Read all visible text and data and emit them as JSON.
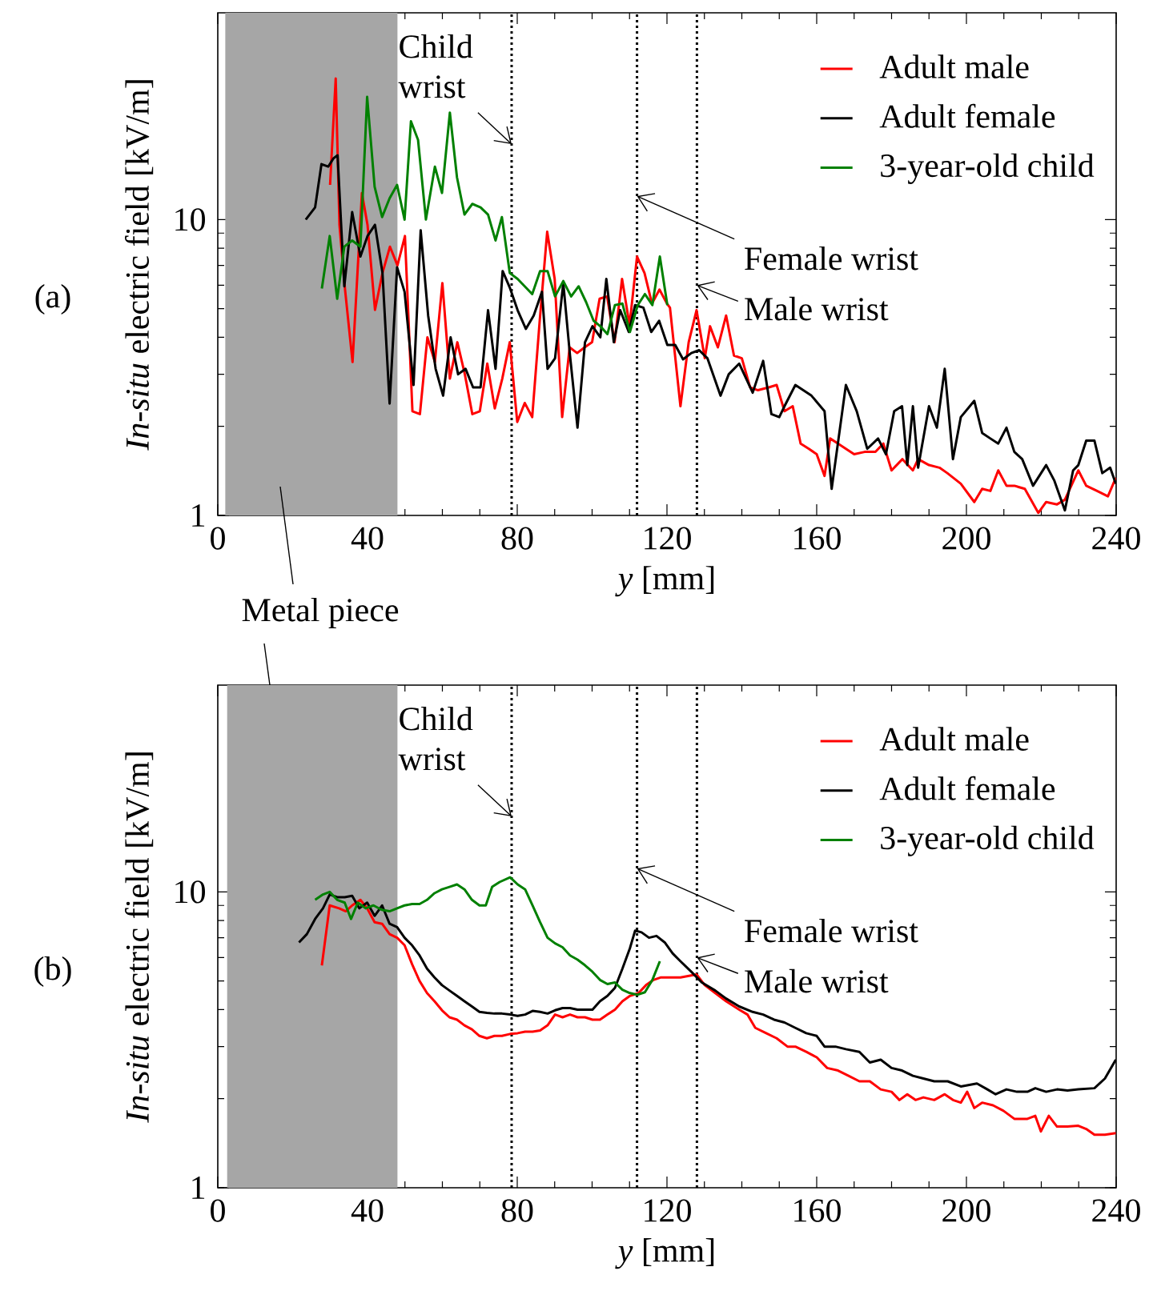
{
  "chart_data": [
    {
      "type": "line",
      "xlabel": "*y* [mm]",
      "ylabel": "*In-situ* electric field [kV/m]",
      "annotations": [
        "(a)"
      ],
      "xlim": [
        0,
        240
      ],
      "xticks": [
        0,
        40,
        80,
        120,
        160,
        200,
        240
      ],
      "ylim": [
        1,
        50
      ],
      "yticks": [
        1,
        10
      ],
      "log": "y",
      "legend": "top right",
      "bands": [
        {
          "axis": "x",
          "from": 2,
          "to": 48,
          "label": "Metal piece",
          "color": "#a6a6a6"
        }
      ],
      "ref_lines": [
        {
          "axis": "x",
          "value": 78.5,
          "label": "Child wrist",
          "color": "#000000",
          "line_style": "dotted"
        },
        {
          "axis": "x",
          "value": 112,
          "label": "Female wrist",
          "color": "#000000",
          "line_style": "dotted"
        },
        {
          "axis": "x",
          "value": 128,
          "label": "Male wrist",
          "color": "#000000",
          "line_style": "dotted"
        }
      ],
      "series": [
        {
          "name": "Adult male",
          "color": "#ff0000",
          "x": [
            30,
            31.5,
            32.5,
            34,
            36,
            38.5,
            40,
            42,
            44,
            46,
            48,
            50,
            52,
            54,
            56,
            58,
            60,
            62,
            64,
            66,
            68,
            70,
            72,
            74,
            76,
            78,
            80,
            82,
            84,
            86,
            88,
            90,
            92,
            94,
            96,
            98,
            100,
            102,
            104,
            106,
            108,
            110,
            112,
            114,
            116,
            118,
            120,
            120.8,
            123.6,
            125.8,
            127.9,
            130.1,
            131.5,
            133.6,
            135.8,
            137.9,
            140,
            142.2,
            144.3,
            147.2,
            149.3,
            151.4,
            153.6,
            155.7,
            157.9,
            160,
            162.1,
            163.6,
            165.7,
            167.8,
            170,
            172.8,
            175.7,
            177.8,
            180,
            182.9,
            185.7,
            187.1,
            190,
            192.8,
            194.9,
            198.5,
            202.1,
            204.2,
            206.4,
            208.5,
            210.7,
            212.8,
            215.6,
            219.2,
            221.3,
            224.2,
            226.3,
            229.9,
            232,
            234.9,
            237.8,
            239.9
          ],
          "values": [
            13.1,
            30,
            9.6,
            5.8,
            3.3,
            12.3,
            9.6,
            4.95,
            6.6,
            8.1,
            7.0,
            8.8,
            2.25,
            2.2,
            4.0,
            3.3,
            6.1,
            2.9,
            3.85,
            3.0,
            2.2,
            2.25,
            3.26,
            2.3,
            2.9,
            3.85,
            2.07,
            2.4,
            2.15,
            4.55,
            9.1,
            6.3,
            2.15,
            3.7,
            3.54,
            3.7,
            3.85,
            5.4,
            5.5,
            3.85,
            6.3,
            4.4,
            7.5,
            6.6,
            5.2,
            5.8,
            5.2,
            5.04,
            2.34,
            3.85,
            4.94,
            3.4,
            4.36,
            3.7,
            4.74,
            3.47,
            3.4,
            2.71,
            2.65,
            2.71,
            2.76,
            2.25,
            2.34,
            1.75,
            1.68,
            1.61,
            1.36,
            1.82,
            1.75,
            1.68,
            1.61,
            1.64,
            1.64,
            1.75,
            1.42,
            1.55,
            1.42,
            1.55,
            1.48,
            1.45,
            1.39,
            1.28,
            1.11,
            1.23,
            1.21,
            1.42,
            1.26,
            1.26,
            1.23,
            1.02,
            1.11,
            1.09,
            1.13,
            1.42,
            1.26,
            1.21,
            1.16,
            1.34
          ]
        },
        {
          "name": "Adult female",
          "color": "#000000",
          "x": [
            23.5,
            26,
            27.7,
            29.5,
            30.9,
            32,
            33.8,
            35.9,
            38.1,
            40,
            42,
            44,
            45.9,
            47.9,
            49.9,
            52.3,
            54.2,
            56.2,
            58.2,
            60.2,
            62.2,
            64.2,
            66.2,
            68.2,
            70.2,
            72.2,
            74.2,
            76.1,
            78.1,
            80.1,
            82.3,
            84.4,
            86.6,
            88.1,
            90.1,
            92.3,
            94.1,
            96.1,
            98.1,
            100.1,
            102.2,
            103.8,
            105.8,
            107.5,
            109.8,
            111.5,
            113.7,
            115.8,
            117.9,
            120.1,
            122.2,
            124.3,
            126.5,
            128.6,
            130.8,
            134.3,
            136.5,
            139.3,
            142.9,
            145.7,
            147.9,
            150,
            151.4,
            154.3,
            158.6,
            162.1,
            164,
            167.8,
            170.7,
            173.5,
            176.4,
            178.5,
            180.7,
            182.8,
            184.2,
            185.7,
            187.1,
            190,
            192.1,
            194.2,
            196.4,
            198.5,
            202.1,
            204.2,
            206.4,
            208.5,
            210.7,
            212.8,
            214.9,
            217.8,
            221.3,
            223.5,
            226.3,
            228.5,
            229.9,
            232,
            234.2,
            236.3,
            238.4,
            239.9
          ],
          "values": [
            10,
            11,
            15.4,
            15.1,
            16.1,
            16.5,
            5.95,
            10.6,
            7.5,
            8.8,
            9.6,
            6.6,
            2.39,
            6.9,
            5.7,
            2.76,
            9.2,
            4.74,
            3.13,
            2.54,
            4.0,
            3.0,
            3.13,
            2.71,
            2.71,
            4.94,
            3.13,
            6.7,
            5.85,
            4.94,
            4.27,
            4.74,
            5.7,
            3.13,
            3.4,
            6.1,
            3.47,
            1.98,
            3.85,
            4.36,
            4.0,
            6.3,
            3.85,
            4.94,
            4.17,
            5.14,
            5.04,
            4.17,
            4.55,
            3.77,
            3.77,
            3.37,
            3.54,
            3.62,
            3.4,
            2.54,
            3.0,
            3.26,
            2.6,
            3.33,
            2.2,
            2.15,
            2.34,
            2.76,
            2.54,
            2.25,
            1.23,
            2.76,
            2.25,
            1.68,
            1.82,
            1.61,
            2.25,
            2.34,
            1.48,
            2.34,
            1.45,
            2.34,
            1.98,
            3.13,
            1.55,
            2.15,
            2.44,
            1.9,
            1.82,
            1.75,
            1.98,
            1.64,
            1.55,
            1.26,
            1.48,
            1.31,
            1.04,
            1.42,
            1.48,
            1.79,
            1.79,
            1.39,
            1.45,
            1.28
          ]
        },
        {
          "name": "3-year-old child",
          "color": "#008000",
          "x": [
            27.8,
            29.9,
            31.9,
            33.8,
            35.9,
            38.1,
            39.9,
            41.9,
            43.9,
            45.9,
            47.9,
            49.9,
            51.6,
            53.5,
            55.6,
            58,
            59.9,
            62,
            63.9,
            65.9,
            68,
            70.2,
            72.2,
            74.2,
            75.9,
            78,
            80.1,
            82,
            84,
            86.1,
            88.1,
            90.1,
            92.3,
            94.4,
            96.4,
            98.4,
            100.4,
            102.2,
            104.1,
            106.1,
            108.1,
            110.1,
            112.2,
            114.1,
            116.1,
            118.1,
            120.1
          ],
          "values": [
            5.85,
            8.8,
            5.4,
            8.1,
            8.5,
            8.1,
            26,
            12.9,
            10.2,
            11.8,
            13.1,
            10,
            21.5,
            18.6,
            10,
            15.1,
            12.3,
            23,
            13.9,
            10.4,
            11.3,
            11,
            10.4,
            8.5,
            10.2,
            6.6,
            6.3,
            5.95,
            5.6,
            6.7,
            6.7,
            5.5,
            6.2,
            5.5,
            5.95,
            5.26,
            4.55,
            4.36,
            4.1,
            5.14,
            5.2,
            4.17,
            5.14,
            5.6,
            5.14,
            7.5,
            5.14
          ]
        }
      ]
    },
    {
      "type": "line",
      "xlabel": "*y* [mm]",
      "ylabel": "*In-situ* electric field [kV/m]",
      "annotations": [
        "(b)"
      ],
      "xlim": [
        0,
        240
      ],
      "xticks": [
        0,
        40,
        80,
        120,
        160,
        200,
        240
      ],
      "ylim": [
        1,
        50
      ],
      "yticks": [
        1,
        10
      ],
      "log": "y",
      "legend": "top right",
      "bands": [
        {
          "axis": "x",
          "from": 2.5,
          "to": 48,
          "color": "#a6a6a6"
        }
      ],
      "ref_lines": [
        {
          "axis": "x",
          "value": 78.5,
          "label": "Child wrist",
          "color": "#000000",
          "line_style": "dotted"
        },
        {
          "axis": "x",
          "value": 112,
          "label": "Female wrist",
          "color": "#000000",
          "line_style": "dotted"
        },
        {
          "axis": "x",
          "value": 128,
          "label": "Male wrist",
          "color": "#000000",
          "line_style": "dotted"
        }
      ],
      "series": [
        {
          "name": "Adult male",
          "color": "#ff0000",
          "x": [
            27.8,
            29.9,
            32.4,
            34.2,
            35.9,
            38.1,
            39.9,
            41.9,
            43.9,
            45.9,
            47.9,
            49.9,
            51.9,
            53.9,
            55.9,
            57.9,
            59.9,
            61.9,
            63.9,
            65.9,
            67.9,
            69.9,
            71.9,
            73.9,
            75.9,
            78.1,
            80.1,
            82.1,
            84.1,
            86.1,
            88.1,
            90.1,
            92.1,
            94.1,
            96.1,
            98.1,
            100.1,
            102.1,
            104.1,
            106.1,
            108.1,
            110.1,
            112.4,
            114.4,
            116.4,
            118.4,
            120.4,
            123.6,
            127.9,
            130.1,
            132.9,
            135.8,
            139.3,
            141.5,
            143.6,
            146.5,
            149.3,
            152.2,
            154.3,
            157.2,
            160,
            162.8,
            165.7,
            168.5,
            171.4,
            174.2,
            177.1,
            180,
            182.1,
            184.2,
            186.4,
            188.5,
            191.4,
            194.2,
            196.4,
            198.5,
            200.2,
            202.1,
            204.2,
            207.1,
            209.9,
            212.8,
            216.3,
            218.4,
            219.9,
            222,
            224.2,
            227,
            229.9,
            232,
            234.2,
            237,
            239.9
          ],
          "values": [
            5.64,
            9.0,
            8.8,
            8.6,
            9.0,
            9.4,
            8.8,
            7.9,
            7.8,
            7.2,
            7.0,
            6.6,
            5.7,
            5.0,
            4.55,
            4.27,
            3.98,
            3.77,
            3.7,
            3.54,
            3.43,
            3.26,
            3.2,
            3.26,
            3.26,
            3.31,
            3.33,
            3.37,
            3.37,
            3.4,
            3.54,
            3.85,
            3.77,
            3.85,
            3.77,
            3.77,
            3.7,
            3.7,
            3.85,
            4.0,
            4.27,
            4.45,
            4.55,
            4.84,
            5.04,
            5.14,
            5.14,
            5.14,
            5.26,
            4.84,
            4.55,
            4.27,
            4.0,
            3.85,
            3.47,
            3.33,
            3.2,
            3.0,
            3.0,
            2.88,
            2.76,
            2.54,
            2.49,
            2.39,
            2.29,
            2.29,
            2.15,
            2.11,
            1.98,
            2.07,
            1.98,
            2.02,
            1.98,
            2.07,
            1.98,
            1.94,
            2.11,
            1.86,
            1.94,
            1.9,
            1.82,
            1.71,
            1.71,
            1.75,
            1.55,
            1.75,
            1.61,
            1.61,
            1.62,
            1.58,
            1.51,
            1.51,
            1.53
          ]
        },
        {
          "name": "Adult female",
          "color": "#000000",
          "x": [
            21.7,
            23.8,
            26,
            28.1,
            29.9,
            31.9,
            33.9,
            35.9,
            37.8,
            39.9,
            41.9,
            43.9,
            45.9,
            47.9,
            49.9,
            51.9,
            53.9,
            55.9,
            57.9,
            59.9,
            61.9,
            63.9,
            65.9,
            67.9,
            69.9,
            71.9,
            73.9,
            75.9,
            78.1,
            80.1,
            82.1,
            84.1,
            86.1,
            88.1,
            90.1,
            92.1,
            94.1,
            96.1,
            98.1,
            100.1,
            102.1,
            104.1,
            106.1,
            108.1,
            110.1,
            111.5,
            113.2,
            115.2,
            117.2,
            119.4,
            121.5,
            123.6,
            126.5,
            129.3,
            132.9,
            135.8,
            139.3,
            142.9,
            145.7,
            148.6,
            151.4,
            154.3,
            157.2,
            160,
            162.1,
            165,
            167.8,
            171.4,
            174.2,
            177.1,
            180,
            182.8,
            185.7,
            188.5,
            191.4,
            195,
            198.5,
            202.8,
            205.6,
            207.8,
            210.7,
            213.5,
            216.3,
            218.4,
            221.3,
            224.2,
            227,
            229.9,
            234.2,
            237,
            239.9
          ],
          "values": [
            6.75,
            7.2,
            8.1,
            8.8,
            9.8,
            9.6,
            9.6,
            9.7,
            8.8,
            9.2,
            8.3,
            9.0,
            7.8,
            7.6,
            7.0,
            6.6,
            6.1,
            5.5,
            5.14,
            4.84,
            4.64,
            4.45,
            4.27,
            4.1,
            3.93,
            3.9,
            3.88,
            3.88,
            3.85,
            3.81,
            3.85,
            3.96,
            3.93,
            3.88,
            3.98,
            4.05,
            4.05,
            4.0,
            4.0,
            4.0,
            4.27,
            4.45,
            4.74,
            5.5,
            6.45,
            7.4,
            7.3,
            7.0,
            7.1,
            6.75,
            6.2,
            5.83,
            5.37,
            4.94,
            4.64,
            4.36,
            4.1,
            3.93,
            3.85,
            3.7,
            3.62,
            3.47,
            3.33,
            3.26,
            3.0,
            3.0,
            2.94,
            2.88,
            2.65,
            2.71,
            2.54,
            2.49,
            2.39,
            2.34,
            2.29,
            2.29,
            2.2,
            2.25,
            2.15,
            2.07,
            2.15,
            2.11,
            2.11,
            2.17,
            2.11,
            2.15,
            2.13,
            2.15,
            2.17,
            2.34,
            2.71
          ]
        },
        {
          "name": "3-year-old child",
          "color": "#008000",
          "x": [
            26,
            28.1,
            29.9,
            31.9,
            33.9,
            35.6,
            37.4,
            39.5,
            41.6,
            43.8,
            45.9,
            47.9,
            49.9,
            51.9,
            53.9,
            55.9,
            57.9,
            59.9,
            61.9,
            63.9,
            65.9,
            67.9,
            69.9,
            71.6,
            73.3,
            75.3,
            78.1,
            80.1,
            82.1,
            84.1,
            86.1,
            88.1,
            90.1,
            92.1,
            94.1,
            96.1,
            98.1,
            100.1,
            102.1,
            104.1,
            106.1,
            108.1,
            110.1,
            112.1,
            114.1,
            116.1,
            118.1
          ],
          "values": [
            9.4,
            9.8,
            10,
            9.4,
            9.2,
            8.1,
            9.2,
            8.8,
            9.0,
            8.7,
            8.6,
            8.8,
            9.0,
            9.1,
            9.1,
            9.4,
            9.9,
            10.2,
            10.4,
            10.6,
            10.2,
            9.4,
            9.0,
            9.0,
            10.4,
            10.8,
            11.2,
            10.6,
            10.2,
            9.0,
            7.9,
            7.0,
            6.7,
            6.5,
            6.1,
            5.9,
            5.65,
            5.37,
            5.04,
            4.88,
            4.94,
            4.67,
            4.55,
            4.49,
            4.58,
            5.04,
            5.83
          ]
        }
      ]
    }
  ]
}
